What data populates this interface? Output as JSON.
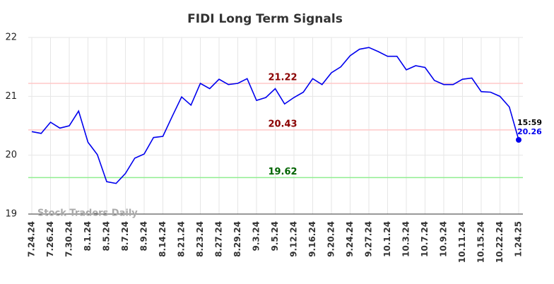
{
  "chart_data": {
    "type": "line",
    "title": "FIDI Long Term Signals",
    "categories": [
      "7.24.24",
      null,
      "7.26.24",
      null,
      "7.30.24",
      null,
      "8.1.24",
      null,
      "8.5.24",
      null,
      "8.7.24",
      null,
      "8.9.24",
      null,
      "8.14.24",
      null,
      "8.21.24",
      null,
      "8.23.24",
      null,
      "8.27.24",
      null,
      "8.29.24",
      null,
      "9.3.24",
      null,
      "9.5.24",
      null,
      "9.12.24",
      null,
      "9.16.24",
      null,
      "9.20.24",
      null,
      "9.24.24",
      null,
      "9.27.24",
      null,
      "10.1.24",
      null,
      "10.3.24",
      null,
      "10.7.24",
      null,
      "10.9.24",
      null,
      "10.11.24",
      null,
      "10.15.24",
      null,
      "10.22.24",
      null,
      "1.24.25"
    ],
    "series": [
      {
        "name": "FIDI",
        "color": "#0000ee",
        "values": [
          20.4,
          20.37,
          20.56,
          20.46,
          20.5,
          20.75,
          20.22,
          20.01,
          19.55,
          19.52,
          19.69,
          19.95,
          20.02,
          20.3,
          20.32,
          20.66,
          20.99,
          20.85,
          21.22,
          21.13,
          21.29,
          21.2,
          21.22,
          21.3,
          20.93,
          20.98,
          21.13,
          20.87,
          20.98,
          21.07,
          21.3,
          21.2,
          21.4,
          21.5,
          21.69,
          21.8,
          21.83,
          21.76,
          21.68,
          21.68,
          21.45,
          21.52,
          21.49,
          21.27,
          21.2,
          21.2,
          21.29,
          21.31,
          21.08,
          21.07,
          21.0,
          20.82,
          20.26
        ]
      }
    ],
    "hlines": [
      {
        "value": 21.22,
        "color": "#ffc8c8",
        "label_color": "#8b0000"
      },
      {
        "value": 20.43,
        "color": "#ffc8c8",
        "label_color": "#8b0000"
      },
      {
        "value": 19.62,
        "color": "#90ee90",
        "label_color": "#006400"
      }
    ],
    "last_time": "15:59",
    "watermark": "Stock Traders Daily",
    "ylim": [
      19,
      22
    ],
    "yticks": [
      19,
      20,
      21,
      22
    ],
    "grid": true
  }
}
